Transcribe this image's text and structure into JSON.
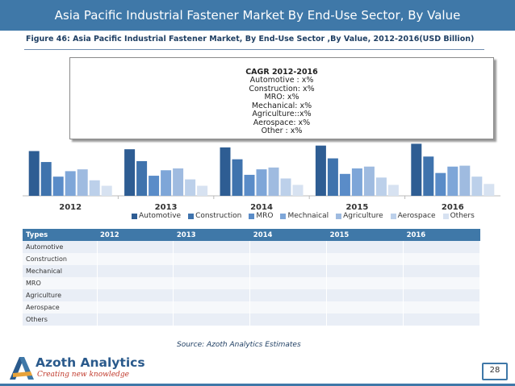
{
  "header": {
    "title": "Asia Pacific Industrial Fastener Market By End-Use Sector, By Value"
  },
  "figure_caption": "Figure 46: Asia Pacific Industrial Fastener Market, By End-Use Sector ,By Value, 2012-2016(USD Billion)",
  "cagr_box": {
    "title": "CAGR 2012-2016",
    "lines": [
      "Automotive : x%",
      "Construction: x%",
      "MRO: x%",
      "Mechanical: x%",
      "Agriculture::x%",
      "Aerospace: x%",
      "Other : x%"
    ]
  },
  "colors": {
    "header": "#3f78a8",
    "series": [
      "#2e5d93",
      "#3f73ad",
      "#5a8cc8",
      "#7ea6d8",
      "#9fbbe0",
      "#bcd0ea",
      "#d7e2f1"
    ]
  },
  "chart_data": {
    "type": "bar",
    "categories": [
      "2012",
      "2013",
      "2014",
      "2015",
      "2016"
    ],
    "series": [
      {
        "name": "Automotive",
        "values": [
          49,
          51,
          53,
          55,
          57
        ]
      },
      {
        "name": "Construction",
        "values": [
          37,
          38,
          40,
          41,
          43
        ]
      },
      {
        "name": "MRO",
        "values": [
          21,
          22,
          23,
          24,
          25
        ]
      },
      {
        "name": "Mechnaical",
        "values": [
          27,
          28,
          29,
          30,
          32
        ]
      },
      {
        "name": "Agriculture",
        "values": [
          29,
          30,
          31,
          32,
          33
        ]
      },
      {
        "name": "Aerospace",
        "values": [
          17,
          18,
          19,
          20,
          21
        ]
      },
      {
        "name": "Others",
        "values": [
          11,
          11,
          12,
          12,
          13
        ]
      }
    ],
    "ylim": [
      0,
      60
    ],
    "xlabel": "",
    "ylabel": "",
    "legend_position": "bottom"
  },
  "table": {
    "headers": [
      "Types",
      "2012",
      "2013",
      "2014",
      "2015",
      "2016"
    ],
    "rows": [
      "Automotive",
      "Construction",
      "Mechanical",
      "MRO",
      "Agriculture",
      "Aerospace",
      "Others"
    ]
  },
  "source": "Source: Azoth Analytics Estimates",
  "logo": {
    "name": "Azoth Analytics",
    "tagline": "Creating new knowledge"
  },
  "page_number": "28"
}
